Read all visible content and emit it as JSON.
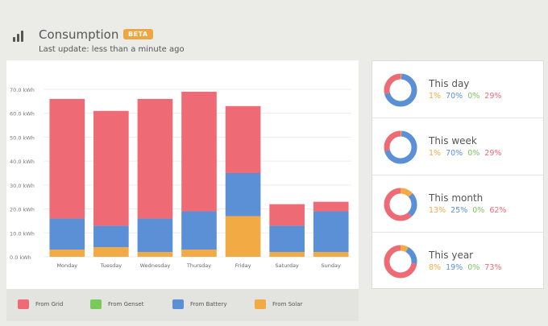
{
  "header": {
    "title": "Consumption",
    "badge": "BETA",
    "subtitle": "Last update: less than a minute ago"
  },
  "colors": {
    "grid": "#ee6b76",
    "genset": "#79c95b",
    "battery": "#5b8fd6",
    "solar": "#f2ab44"
  },
  "legend": [
    {
      "label": "From Grid",
      "key": "grid"
    },
    {
      "label": "From Genset",
      "key": "genset"
    },
    {
      "label": "From Battery",
      "key": "battery"
    },
    {
      "label": "From Solar",
      "key": "solar"
    }
  ],
  "chart_data": {
    "type": "bar",
    "stacked": true,
    "categories": [
      "Monday",
      "Tuesday",
      "Wednesday",
      "Thursday",
      "Friday",
      "Saturday",
      "Sunday"
    ],
    "series": [
      {
        "name": "From Solar",
        "key": "solar",
        "values": [
          3,
          4,
          2,
          3,
          17,
          2,
          2
        ]
      },
      {
        "name": "From Genset",
        "key": "genset",
        "values": [
          0,
          0,
          0,
          0,
          0,
          0,
          0
        ]
      },
      {
        "name": "From Battery",
        "key": "battery",
        "values": [
          13,
          9,
          14,
          16,
          18,
          11,
          17
        ]
      },
      {
        "name": "From Grid",
        "key": "grid",
        "values": [
          50,
          48,
          50,
          50,
          28,
          9,
          4
        ]
      }
    ],
    "ylim": [
      0,
      70
    ],
    "yticks": [
      "0.0 kWh",
      "10.0 kWh",
      "20.0 kWh",
      "30.0 kWh",
      "40.0 kWh",
      "50.0 kWh",
      "60.0 kWh",
      "70.0 kWh"
    ],
    "grid": true
  },
  "summary": [
    {
      "title": "This day",
      "solar": "1%",
      "battery": "70%",
      "genset": "0%",
      "grid": "29%",
      "fractions": {
        "solar": 0.01,
        "battery": 0.7,
        "genset": 0.0,
        "grid": 0.29
      }
    },
    {
      "title": "This week",
      "solar": "1%",
      "battery": "70%",
      "genset": "0%",
      "grid": "29%",
      "fractions": {
        "solar": 0.01,
        "battery": 0.7,
        "genset": 0.0,
        "grid": 0.29
      }
    },
    {
      "title": "This month",
      "solar": "13%",
      "battery": "25%",
      "genset": "0%",
      "grid": "62%",
      "fractions": {
        "solar": 0.13,
        "battery": 0.25,
        "genset": 0.0,
        "grid": 0.62
      }
    },
    {
      "title": "This year",
      "solar": "8%",
      "battery": "19%",
      "genset": "0%",
      "grid": "73%",
      "fractions": {
        "solar": 0.08,
        "battery": 0.19,
        "genset": 0.0,
        "grid": 0.73
      }
    }
  ]
}
